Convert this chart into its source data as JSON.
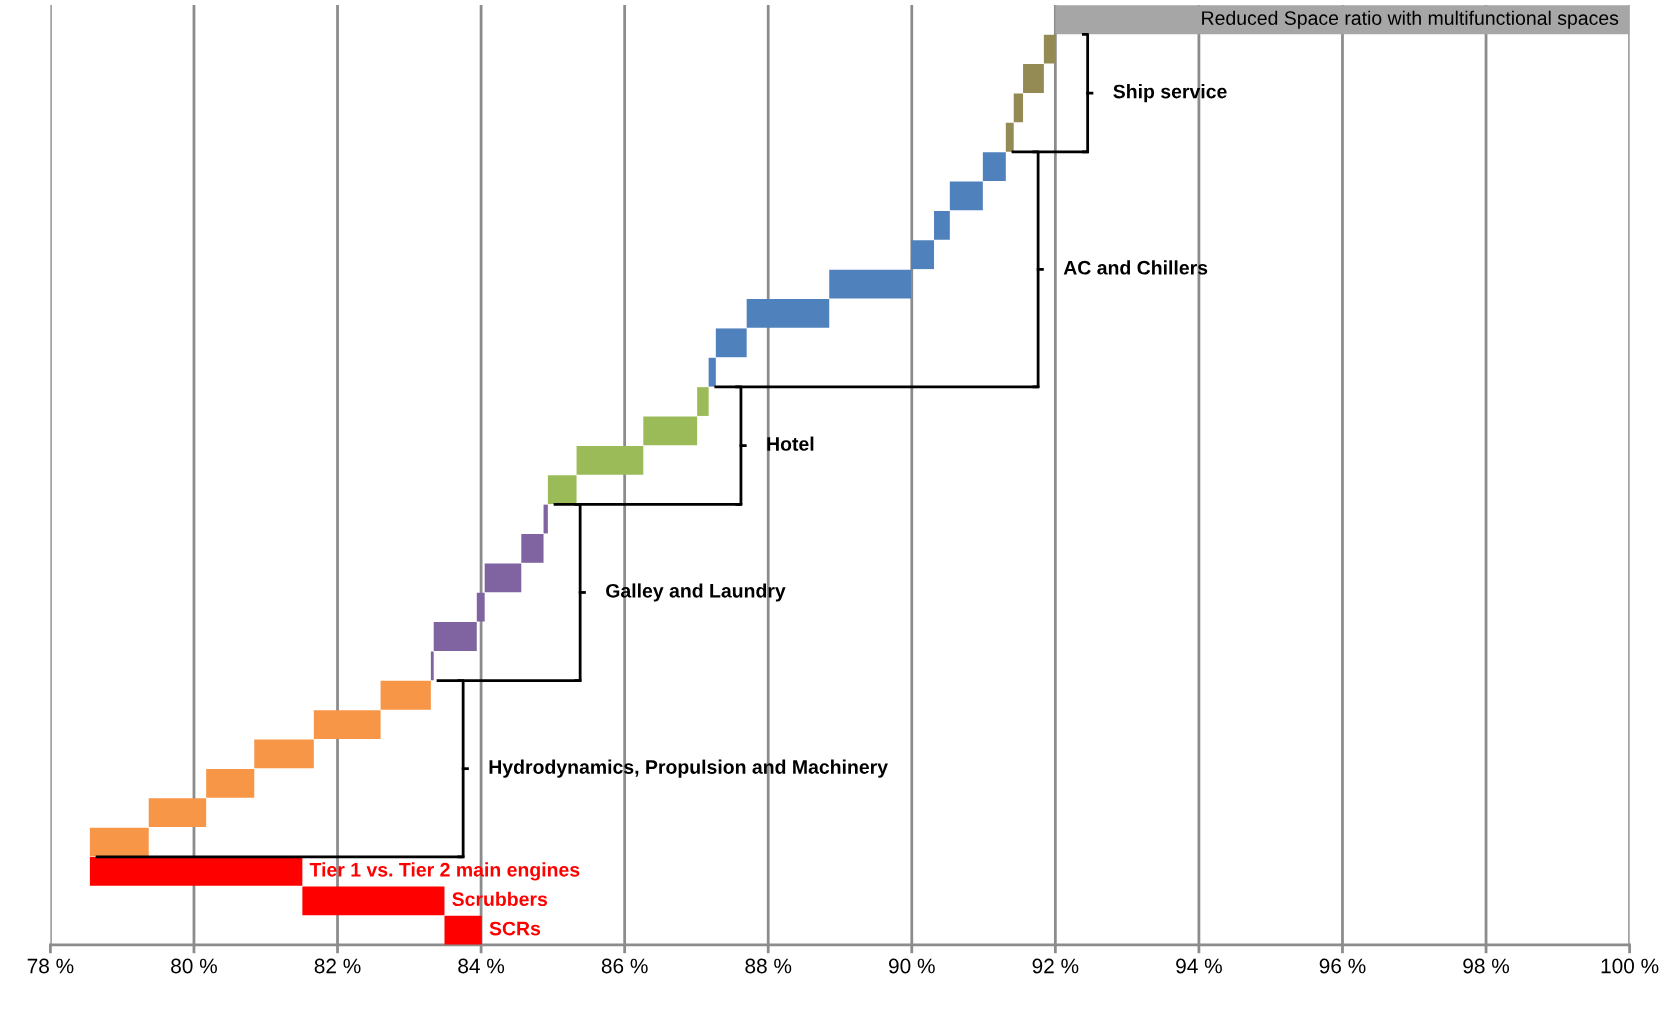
{
  "chart_data": {
    "type": "bar",
    "orientation": "horizontal",
    "grid": "x",
    "tick_labels": "x",
    "categories": [
      "Reduced Space ratio with multifunctional spaces",
      null,
      null,
      null,
      null,
      null,
      null,
      null,
      null,
      null,
      null,
      null,
      null,
      null,
      null,
      null,
      null,
      null,
      null,
      null,
      null,
      null,
      null,
      null,
      null,
      null,
      null,
      null,
      null,
      "Tier 1 vs. Tier 2 main engines",
      "Scrubbers",
      "SCRs"
    ],
    "series": [
      {
        "color": "#a6a6a6",
        "values": [
          8.0,
          null,
          null,
          null,
          null,
          null,
          null,
          null,
          null,
          null,
          null,
          null,
          null,
          null,
          null,
          null,
          null,
          null,
          null,
          null,
          null,
          null,
          null,
          null,
          null,
          null,
          null,
          null,
          null,
          null,
          null,
          null
        ],
        "base": [
          92.0,
          null,
          null,
          null,
          null,
          null,
          null,
          null,
          null,
          null,
          null,
          null,
          null,
          null,
          null,
          null,
          null,
          null,
          null,
          null,
          null,
          null,
          null,
          null,
          null,
          null,
          null,
          null,
          null,
          null,
          null,
          null
        ]
      },
      {
        "name": "Ship service",
        "color": "#948a54",
        "values": [
          null,
          0.16,
          0.29,
          0.13,
          0.11,
          null,
          null,
          null,
          null,
          null,
          null,
          null,
          null,
          null,
          null,
          null,
          null,
          null,
          null,
          null,
          null,
          null,
          null,
          null,
          null,
          null,
          null,
          null,
          null,
          null,
          null,
          null
        ],
        "base": [
          null,
          91.84,
          91.55,
          91.42,
          91.31,
          null,
          null,
          null,
          null,
          null,
          null,
          null,
          null,
          null,
          null,
          null,
          null,
          null,
          null,
          null,
          null,
          null,
          null,
          null,
          null,
          null,
          null,
          null,
          null,
          null,
          null,
          null
        ]
      },
      {
        "name": "AC and Chillers",
        "color": "#4f81bd",
        "values": [
          null,
          null,
          null,
          null,
          null,
          0.32,
          0.46,
          0.22,
          0.32,
          1.14,
          1.15,
          0.43,
          0.1,
          null,
          null,
          null,
          null,
          null,
          null,
          null,
          null,
          null,
          null,
          null,
          null,
          null,
          null,
          null,
          null,
          null,
          null,
          null
        ],
        "base": [
          null,
          null,
          null,
          null,
          null,
          90.99,
          90.53,
          90.31,
          89.99,
          88.85,
          87.7,
          87.27,
          87.17,
          null,
          null,
          null,
          null,
          null,
          null,
          null,
          null,
          null,
          null,
          null,
          null,
          null,
          null,
          null,
          null,
          null,
          null,
          null
        ]
      },
      {
        "name": "Hotel",
        "color": "#9bbb59",
        "values": [
          null,
          null,
          null,
          null,
          null,
          null,
          null,
          null,
          null,
          null,
          null,
          null,
          null,
          0.16,
          0.75,
          0.93,
          0.4,
          null,
          null,
          null,
          null,
          null,
          null,
          null,
          null,
          null,
          null,
          null,
          null,
          null,
          null,
          null
        ],
        "base": [
          null,
          null,
          null,
          null,
          null,
          null,
          null,
          null,
          null,
          null,
          null,
          null,
          null,
          87.01,
          86.26,
          85.33,
          84.93,
          null,
          null,
          null,
          null,
          null,
          null,
          null,
          null,
          null,
          null,
          null,
          null,
          null,
          null,
          null
        ]
      },
      {
        "name": "Galley and Laundry",
        "color": "#8064a2",
        "values": [
          null,
          null,
          null,
          null,
          null,
          null,
          null,
          null,
          null,
          null,
          null,
          null,
          null,
          null,
          null,
          null,
          null,
          0.06,
          0.31,
          0.51,
          0.11,
          0.6,
          0.04,
          null,
          null,
          null,
          null,
          null,
          null,
          null,
          null,
          null
        ],
        "base": [
          null,
          null,
          null,
          null,
          null,
          null,
          null,
          null,
          null,
          null,
          null,
          null,
          null,
          null,
          null,
          null,
          null,
          84.87,
          84.56,
          84.05,
          83.94,
          83.34,
          83.3,
          null,
          null,
          null,
          null,
          null,
          null,
          null,
          null,
          null
        ]
      },
      {
        "name": "Hydrodynamics, Propulsion and Machinery",
        "color": "#f79646",
        "values": [
          null,
          null,
          null,
          null,
          null,
          null,
          null,
          null,
          null,
          null,
          null,
          null,
          null,
          null,
          null,
          null,
          null,
          null,
          null,
          null,
          null,
          null,
          null,
          0.7,
          0.93,
          0.83,
          0.67,
          0.8,
          0.82,
          null,
          null,
          null
        ],
        "base": [
          null,
          null,
          null,
          null,
          null,
          null,
          null,
          null,
          null,
          null,
          null,
          null,
          null,
          null,
          null,
          null,
          null,
          null,
          null,
          null,
          null,
          null,
          null,
          82.6,
          81.67,
          80.84,
          80.17,
          79.37,
          78.55,
          null,
          null,
          null
        ]
      },
      {
        "color": "#ff0000",
        "values": [
          null,
          null,
          null,
          null,
          null,
          null,
          null,
          null,
          null,
          null,
          null,
          null,
          null,
          null,
          null,
          null,
          null,
          null,
          null,
          null,
          null,
          null,
          null,
          null,
          null,
          null,
          null,
          null,
          null,
          2.96,
          1.98,
          0.52
        ],
        "base": [
          null,
          null,
          null,
          null,
          null,
          null,
          null,
          null,
          null,
          null,
          null,
          null,
          null,
          null,
          null,
          null,
          null,
          null,
          null,
          null,
          null,
          null,
          null,
          null,
          null,
          null,
          null,
          null,
          null,
          78.55,
          81.51,
          83.49
        ]
      }
    ],
    "xlim": [
      78,
      100
    ],
    "xticks": [
      {
        "value": 78,
        "label": "78 %"
      },
      {
        "value": 80,
        "label": "80 %"
      },
      {
        "value": 82,
        "label": "82 %"
      },
      {
        "value": 84,
        "label": "84 %"
      },
      {
        "value": 86,
        "label": "86 %"
      },
      {
        "value": 88,
        "label": "88 %"
      },
      {
        "value": 90,
        "label": "90 %"
      },
      {
        "value": 92,
        "label": "92 %"
      },
      {
        "value": 94,
        "label": "94 %"
      },
      {
        "value": 96,
        "label": "96 %"
      },
      {
        "value": 98,
        "label": "98 %"
      },
      {
        "value": 100,
        "label": "100 %"
      }
    ]
  }
}
